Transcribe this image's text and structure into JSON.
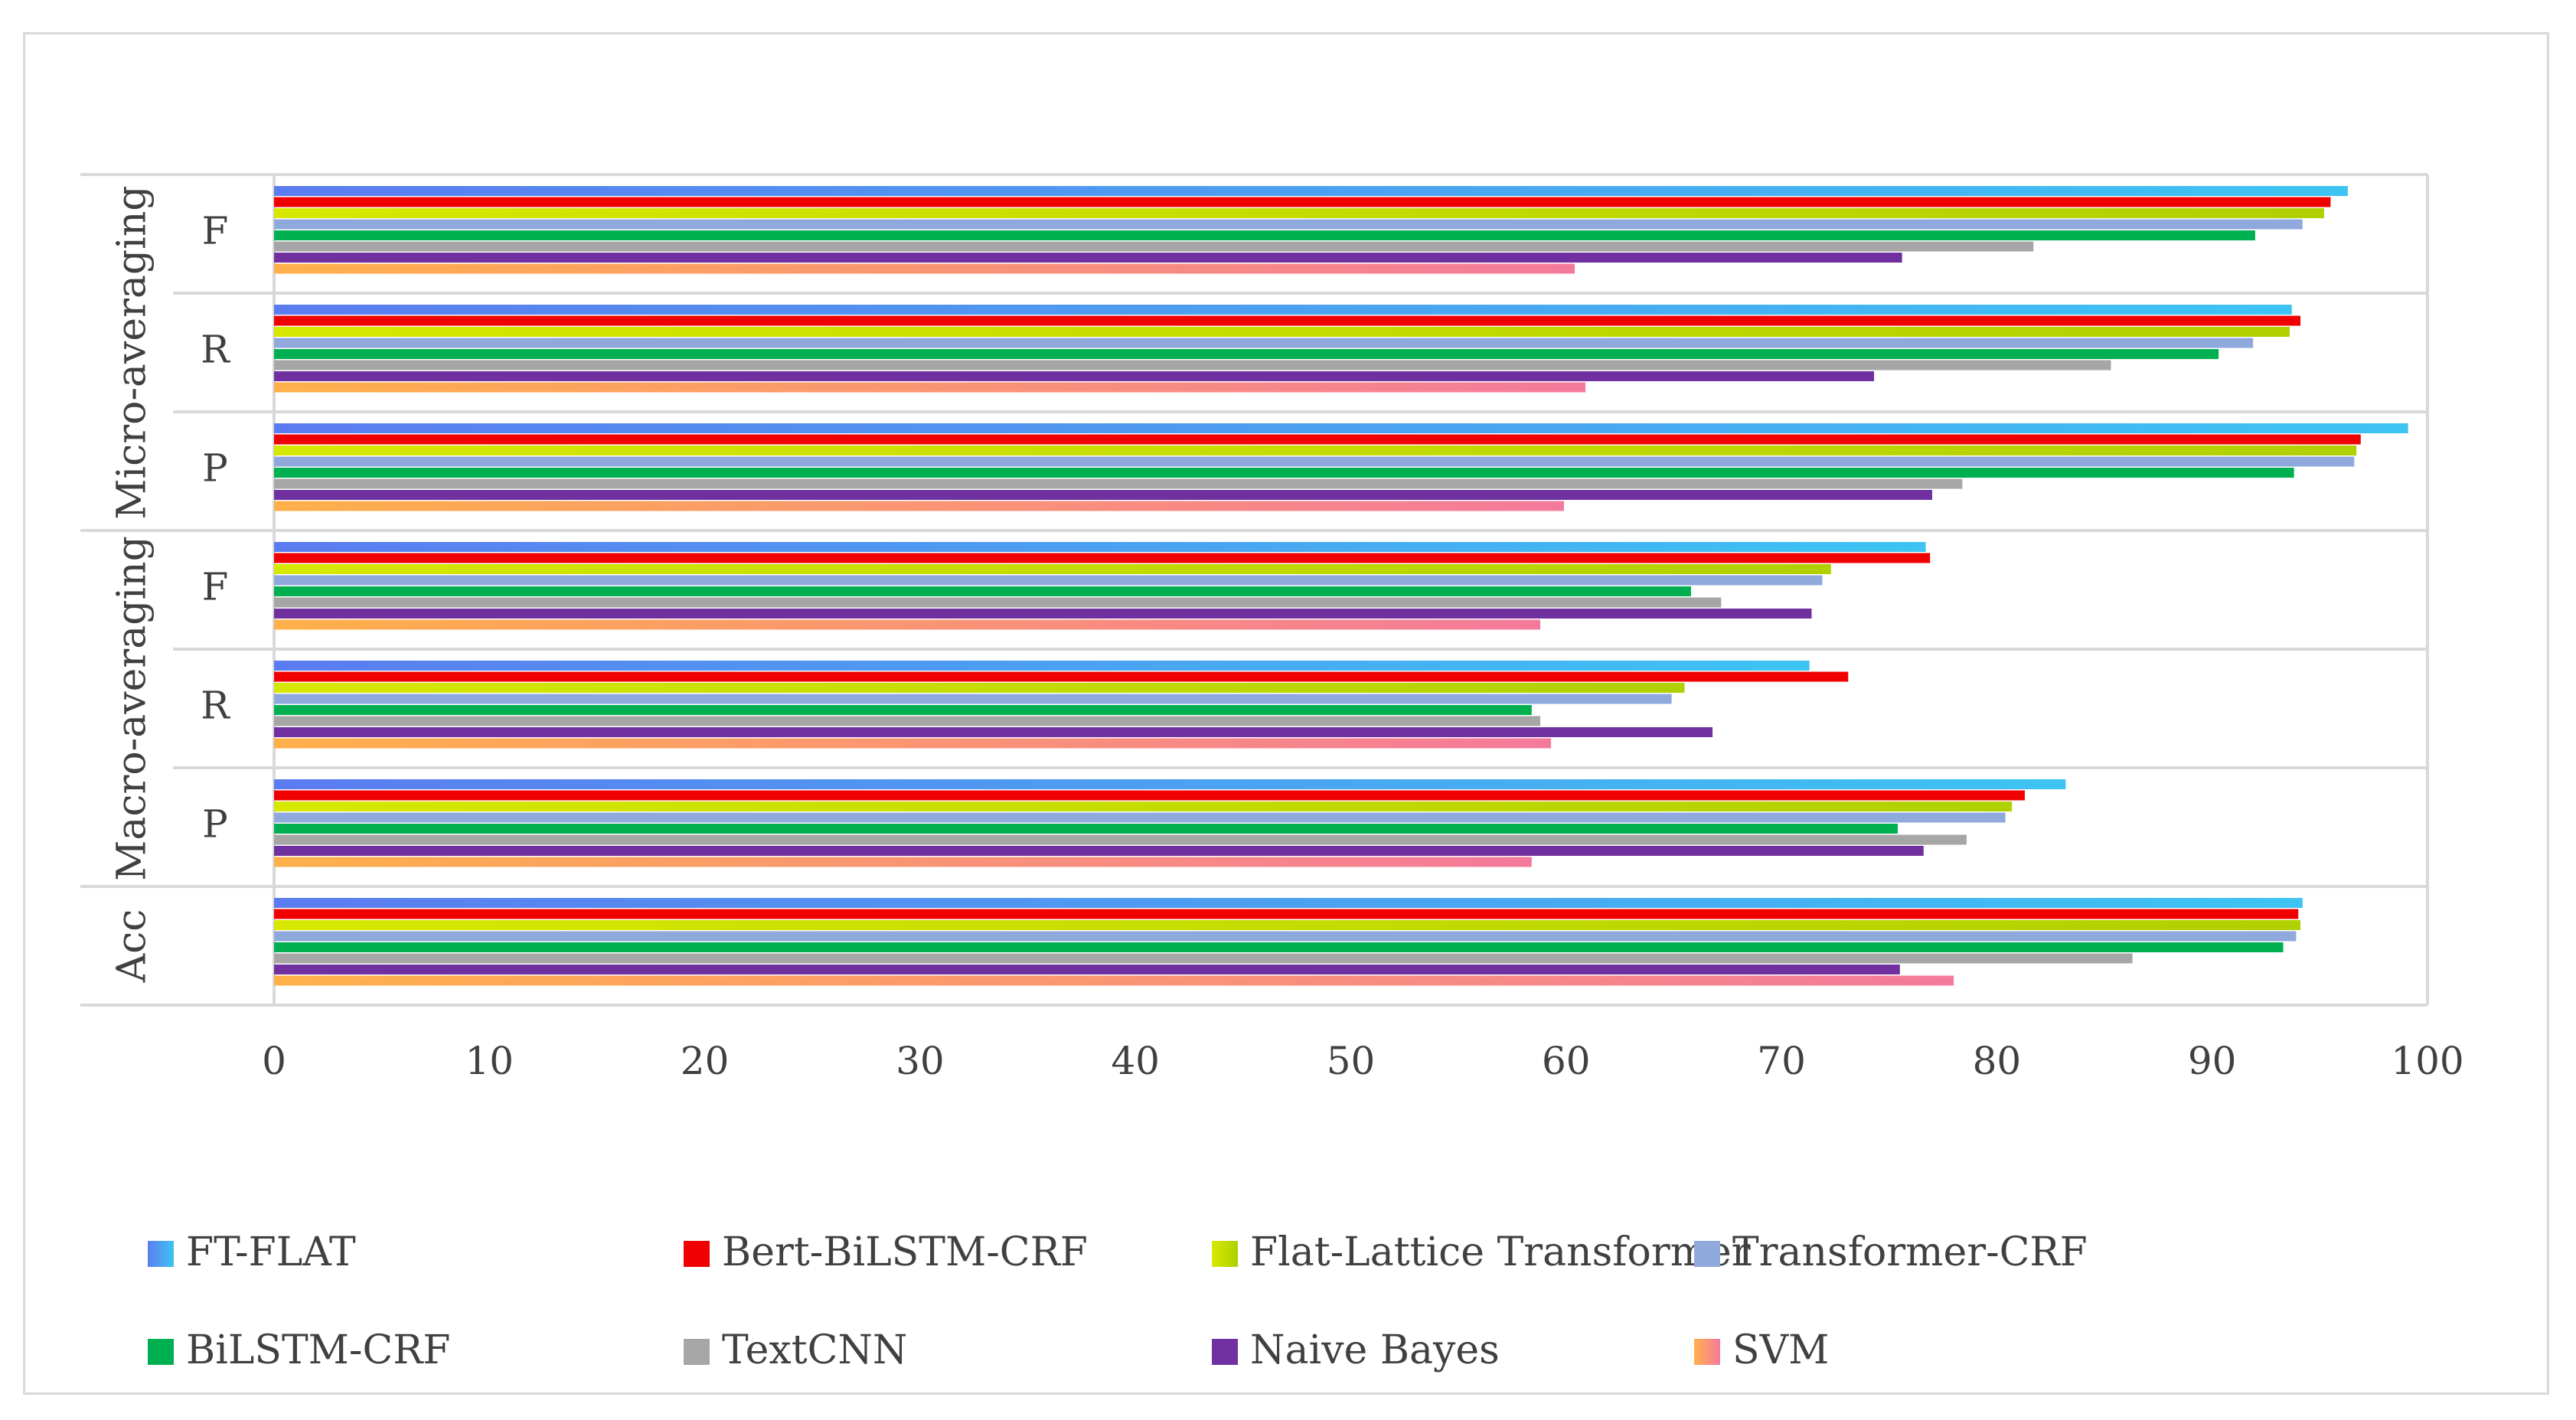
{
  "chart_data": {
    "type": "bar",
    "orientation": "horizontal",
    "title": "",
    "xlim": [
      0,
      100
    ],
    "x_ticks": [
      0,
      10,
      20,
      30,
      40,
      50,
      60,
      70,
      80,
      90,
      100
    ],
    "groups": [
      {
        "label": "Micro-averaging",
        "categories": [
          "F",
          "R",
          "P"
        ]
      },
      {
        "label": "Macro-averaging",
        "categories": [
          "F",
          "R",
          "P"
        ]
      },
      {
        "label": "Acc",
        "categories": [
          ""
        ]
      }
    ],
    "rows": [
      "Micro F",
      "Micro R",
      "Micro P",
      "Macro F",
      "Macro R",
      "Macro P",
      "Acc"
    ],
    "series": [
      {
        "name": "FT-FLAT",
        "color": "#3dc4f2",
        "color2": "#5b7cf0",
        "values": [
          96.3,
          93.7,
          99.1,
          76.7,
          71.3,
          83.2,
          94.2
        ]
      },
      {
        "name": "Bert-BiLSTM-CRF",
        "color": "#f00000",
        "values": [
          95.5,
          94.1,
          96.9,
          76.9,
          73.1,
          81.3,
          94.0
        ]
      },
      {
        "name": "Flat-Lattice Transformer",
        "color": "#b0d000",
        "color2": "#d7e800",
        "values": [
          95.2,
          93.6,
          96.7,
          72.3,
          65.5,
          80.7,
          94.1
        ]
      },
      {
        "name": "Transformer-CRF",
        "color": "#8fa9dd",
        "values": [
          94.2,
          91.9,
          96.6,
          71.9,
          64.9,
          80.4,
          93.9
        ]
      },
      {
        "name": "BiLSTM-CRF",
        "color": "#00b050",
        "values": [
          92.0,
          90.3,
          93.8,
          65.8,
          58.4,
          75.4,
          93.3
        ]
      },
      {
        "name": "TextCNN",
        "color": "#a6a6a6",
        "values": [
          81.7,
          85.3,
          78.4,
          67.2,
          58.8,
          78.6,
          86.3
        ]
      },
      {
        "name": "Naive Bayes",
        "color": "#7030a0",
        "values": [
          75.6,
          74.3,
          77.0,
          71.4,
          66.8,
          76.6,
          75.5
        ]
      },
      {
        "name": "SVM",
        "color": "#f47a9c",
        "color2": "#ffb04a",
        "values": [
          60.4,
          60.9,
          59.9,
          58.8,
          59.3,
          58.4,
          78.0
        ]
      }
    ],
    "legend_position": "bottom",
    "grid": false
  }
}
